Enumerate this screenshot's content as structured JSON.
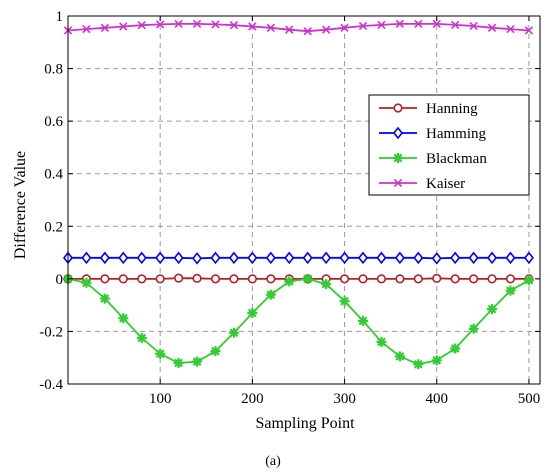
{
  "chart_data": {
    "type": "line",
    "xlabel": "Sampling Point",
    "ylabel": "Difference Value",
    "caption": "(a)",
    "xlim": [
      0,
      512
    ],
    "ylim": [
      -0.4,
      1.0
    ],
    "xticks": [
      100,
      200,
      300,
      400,
      500
    ],
    "yticks": [
      -0.4,
      -0.2,
      0,
      0.2,
      0.4,
      0.6,
      0.8,
      1
    ],
    "ytick_labels": [
      "-0.4",
      "-0.2",
      "0",
      "0.2",
      "0.4",
      "0.6",
      "0.8",
      "1"
    ],
    "grid": true,
    "legend_position": "right",
    "x": [
      0,
      20,
      40,
      60,
      80,
      100,
      120,
      140,
      160,
      180,
      200,
      220,
      240,
      260,
      280,
      300,
      320,
      340,
      360,
      380,
      400,
      420,
      440,
      460,
      480,
      500
    ],
    "series": [
      {
        "name": "Hanning",
        "color": "#b22222",
        "marker": "circle",
        "values": [
          0,
          0,
          0,
          0,
          0,
          0,
          0.003,
          0.002,
          0,
          0,
          0,
          0,
          0,
          0,
          0,
          0,
          0,
          0,
          0,
          0,
          0.002,
          0,
          0,
          0,
          0,
          0
        ]
      },
      {
        "name": "Hamming",
        "color": "#0000ff",
        "marker": "diamond",
        "values": [
          0.08,
          0.08,
          0.08,
          0.08,
          0.08,
          0.08,
          0.08,
          0.078,
          0.08,
          0.08,
          0.08,
          0.08,
          0.08,
          0.08,
          0.08,
          0.08,
          0.08,
          0.08,
          0.08,
          0.08,
          0.078,
          0.08,
          0.08,
          0.08,
          0.08,
          0.08
        ]
      },
      {
        "name": "Blackman",
        "color": "#33cc33",
        "marker": "star",
        "values": [
          0,
          -0.015,
          -0.075,
          -0.15,
          -0.225,
          -0.285,
          -0.32,
          -0.315,
          -0.275,
          -0.205,
          -0.13,
          -0.06,
          -0.01,
          0,
          -0.02,
          -0.085,
          -0.16,
          -0.24,
          -0.295,
          -0.325,
          -0.31,
          -0.265,
          -0.19,
          -0.115,
          -0.045,
          -0.005
        ]
      },
      {
        "name": "Kaiser",
        "color": "#cc33cc",
        "marker": "x",
        "values": [
          0.945,
          0.95,
          0.955,
          0.96,
          0.965,
          0.968,
          0.97,
          0.97,
          0.968,
          0.965,
          0.96,
          0.955,
          0.948,
          0.942,
          0.948,
          0.955,
          0.962,
          0.966,
          0.97,
          0.97,
          0.97,
          0.966,
          0.962,
          0.955,
          0.95,
          0.945
        ]
      }
    ]
  }
}
